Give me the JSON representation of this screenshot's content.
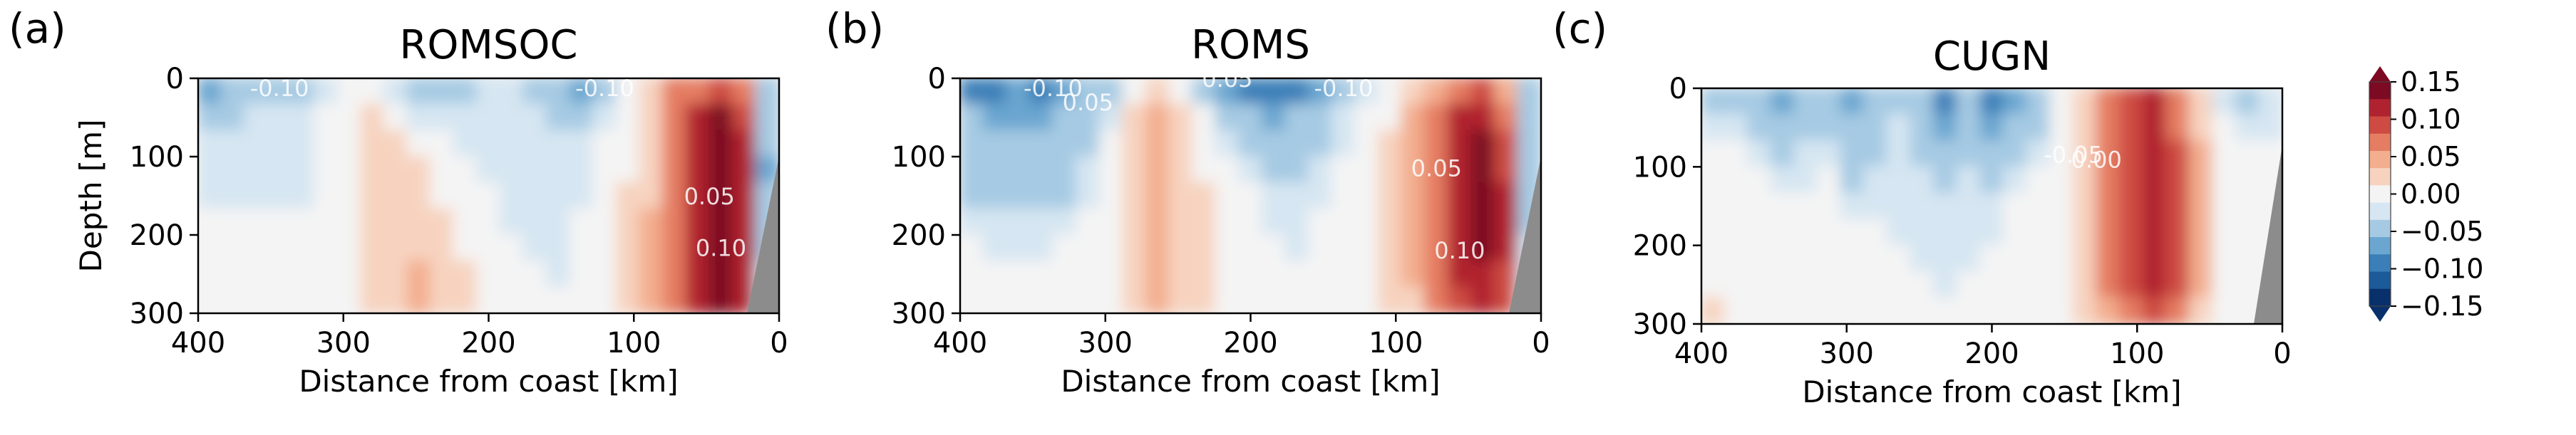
{
  "colors": {
    "cmap": "RdBu_r",
    "land": "#8c8c8c",
    "levels": [
      {
        "lo": -0.15,
        "hi": -0.125,
        "color": "#08306b"
      },
      {
        "lo": -0.125,
        "hi": -0.1,
        "color": "#1c5a99"
      },
      {
        "lo": -0.1,
        "hi": -0.075,
        "color": "#3b7fb8"
      },
      {
        "lo": -0.075,
        "hi": -0.05,
        "color": "#6aa6d0"
      },
      {
        "lo": -0.05,
        "hi": -0.025,
        "color": "#a6cae3"
      },
      {
        "lo": -0.025,
        "hi": -0.01,
        "color": "#d6e6f2"
      },
      {
        "lo": -0.01,
        "hi": 0.01,
        "color": "#f4f4f4"
      },
      {
        "lo": 0.01,
        "hi": 0.025,
        "color": "#f7d3bf"
      },
      {
        "lo": 0.025,
        "hi": 0.05,
        "color": "#f3ae8f"
      },
      {
        "lo": 0.05,
        "hi": 0.075,
        "color": "#e57d62"
      },
      {
        "lo": 0.075,
        "hi": 0.1,
        "color": "#cd4b43"
      },
      {
        "lo": 0.1,
        "hi": 0.125,
        "color": "#b0222f"
      },
      {
        "lo": 0.125,
        "hi": 0.15,
        "color": "#7b0a22"
      }
    ]
  },
  "chart_data": [
    {
      "type": "heatmap",
      "panel_letter": "(a)",
      "title": "ROMSOC",
      "xlabel": "Distance from coast [km]",
      "ylabel": "Depth [m]",
      "xlim": [
        400,
        0
      ],
      "ylim": [
        300,
        0
      ],
      "xticks": [
        "400",
        "300",
        "200",
        "100",
        "0"
      ],
      "yticks": [
        "0",
        "100",
        "200",
        "300"
      ],
      "contour_labels": [
        "-0.10",
        "-0.10",
        "0.05",
        "0.10"
      ],
      "grid": [
        [
          -0.06,
          -0.04,
          -0.03,
          -0.03,
          -0.04,
          -0.02,
          -0.01,
          0.0,
          -0.02,
          -0.04,
          -0.04,
          -0.03,
          -0.02,
          -0.02,
          -0.03,
          -0.05,
          -0.06,
          -0.04,
          -0.01,
          0.02,
          0.05,
          0.07,
          0.08,
          0.06,
          -0.05
        ],
        [
          -0.03,
          -0.03,
          -0.02,
          -0.02,
          -0.02,
          -0.01,
          0.0,
          0.01,
          0.0,
          -0.02,
          -0.02,
          -0.02,
          -0.02,
          -0.02,
          -0.02,
          -0.03,
          -0.03,
          -0.02,
          0.0,
          0.02,
          0.05,
          0.1,
          0.13,
          0.09,
          -0.04
        ],
        [
          -0.02,
          -0.02,
          -0.02,
          -0.02,
          -0.02,
          -0.01,
          0.0,
          0.02,
          0.01,
          0.0,
          -0.01,
          -0.02,
          -0.02,
          -0.02,
          -0.02,
          -0.02,
          -0.02,
          -0.01,
          0.0,
          0.02,
          0.05,
          0.1,
          0.14,
          0.1,
          -0.05
        ],
        [
          -0.02,
          -0.02,
          -0.02,
          -0.02,
          -0.02,
          -0.01,
          0.0,
          0.02,
          0.02,
          0.01,
          0.0,
          -0.01,
          -0.02,
          -0.02,
          -0.02,
          -0.02,
          -0.02,
          -0.01,
          0.0,
          0.02,
          0.05,
          0.1,
          0.14,
          0.11,
          -0.06
        ],
        [
          -0.02,
          -0.02,
          -0.02,
          -0.02,
          -0.02,
          -0.01,
          0.0,
          0.02,
          0.02,
          0.01,
          0.0,
          0.0,
          -0.01,
          -0.02,
          -0.02,
          -0.02,
          -0.02,
          -0.01,
          0.01,
          0.02,
          0.05,
          0.1,
          0.14,
          0.12,
          -0.05
        ],
        [
          0.0,
          0.0,
          0.0,
          0.0,
          -0.01,
          -0.01,
          0.0,
          0.02,
          0.02,
          0.02,
          0.01,
          0.0,
          -0.01,
          -0.02,
          -0.02,
          -0.02,
          -0.01,
          0.0,
          0.01,
          0.03,
          0.05,
          0.1,
          0.14,
          0.12,
          -0.04
        ],
        [
          0.0,
          0.0,
          0.0,
          0.0,
          0.0,
          0.0,
          0.0,
          0.02,
          0.02,
          0.02,
          0.01,
          0.0,
          0.0,
          -0.01,
          -0.02,
          -0.02,
          -0.01,
          0.0,
          0.01,
          0.03,
          0.06,
          0.1,
          0.14,
          0.12,
          -0.03
        ],
        [
          0.0,
          0.0,
          0.0,
          0.0,
          0.0,
          0.0,
          0.0,
          0.02,
          0.02,
          0.03,
          0.02,
          0.01,
          0.0,
          0.0,
          -0.01,
          -0.02,
          -0.01,
          0.0,
          0.01,
          0.03,
          0.06,
          0.1,
          0.13,
          0.11,
          -0.02
        ],
        [
          0.0,
          0.0,
          0.0,
          0.0,
          0.0,
          0.0,
          0.0,
          0.02,
          0.02,
          0.03,
          0.02,
          0.01,
          0.0,
          0.0,
          0.0,
          -0.01,
          0.0,
          0.0,
          0.01,
          0.03,
          0.06,
          0.1,
          0.13,
          0.1,
          -0.02
        ]
      ]
    },
    {
      "type": "heatmap",
      "panel_letter": "(b)",
      "title": "ROMS",
      "xlabel": "Distance from coast [km]",
      "ylabel": "",
      "xlim": [
        400,
        0
      ],
      "ylim": [
        300,
        0
      ],
      "xticks": [
        "400",
        "300",
        "200",
        "100",
        "0"
      ],
      "yticks": [
        "0",
        "100",
        "200",
        "300"
      ],
      "contour_labels": [
        "-0.10",
        "0.05",
        "0.05",
        "-0.10",
        "0.05",
        "0.10"
      ],
      "grid": [
        [
          -0.09,
          -0.08,
          -0.07,
          -0.08,
          -0.07,
          -0.05,
          -0.03,
          0.0,
          0.02,
          0.0,
          -0.03,
          -0.06,
          -0.08,
          -0.09,
          -0.08,
          -0.06,
          -0.04,
          -0.02,
          -0.01,
          0.01,
          0.04,
          0.06,
          0.08,
          0.04,
          -0.04
        ],
        [
          -0.05,
          -0.06,
          -0.06,
          -0.06,
          -0.05,
          -0.04,
          -0.02,
          0.01,
          0.03,
          0.02,
          0.0,
          -0.03,
          -0.05,
          -0.06,
          -0.05,
          -0.03,
          -0.02,
          -0.01,
          0.0,
          0.03,
          0.06,
          0.1,
          0.12,
          0.06,
          -0.03
        ],
        [
          -0.04,
          -0.04,
          -0.04,
          -0.04,
          -0.04,
          -0.03,
          -0.01,
          0.02,
          0.03,
          0.02,
          0.0,
          -0.02,
          -0.03,
          -0.04,
          -0.04,
          -0.03,
          -0.02,
          -0.01,
          0.01,
          0.03,
          0.07,
          0.12,
          0.14,
          0.08,
          -0.04
        ],
        [
          -0.03,
          -0.03,
          -0.03,
          -0.04,
          -0.03,
          -0.02,
          -0.01,
          0.02,
          0.03,
          0.02,
          0.0,
          -0.01,
          -0.02,
          -0.03,
          -0.03,
          -0.02,
          -0.01,
          0.0,
          0.01,
          0.03,
          0.07,
          0.12,
          0.14,
          0.09,
          -0.05
        ],
        [
          -0.03,
          -0.03,
          -0.03,
          -0.03,
          -0.03,
          -0.02,
          0.0,
          0.02,
          0.03,
          0.02,
          0.01,
          0.0,
          -0.01,
          -0.02,
          -0.02,
          -0.02,
          -0.01,
          0.0,
          0.01,
          0.03,
          0.07,
          0.12,
          0.14,
          0.1,
          -0.05
        ],
        [
          -0.02,
          -0.02,
          -0.02,
          -0.02,
          -0.02,
          -0.01,
          0.0,
          0.02,
          0.03,
          0.02,
          0.01,
          0.0,
          -0.01,
          -0.02,
          -0.02,
          -0.01,
          -0.01,
          0.0,
          0.01,
          0.03,
          0.06,
          0.12,
          0.14,
          0.1,
          -0.03
        ],
        [
          -0.01,
          -0.02,
          -0.02,
          -0.02,
          -0.01,
          0.0,
          0.0,
          0.02,
          0.03,
          0.02,
          0.01,
          0.0,
          0.0,
          -0.01,
          -0.02,
          -0.01,
          0.0,
          0.0,
          0.01,
          0.03,
          0.06,
          0.11,
          0.13,
          0.1,
          -0.02
        ],
        [
          -0.01,
          -0.01,
          -0.01,
          -0.01,
          -0.01,
          0.0,
          0.0,
          0.02,
          0.03,
          0.02,
          0.01,
          0.0,
          0.0,
          0.0,
          -0.01,
          -0.01,
          0.0,
          0.0,
          0.01,
          0.03,
          0.06,
          0.1,
          0.12,
          0.09,
          -0.02
        ],
        [
          0.0,
          0.0,
          0.0,
          0.0,
          0.0,
          0.0,
          0.0,
          0.02,
          0.03,
          0.02,
          0.01,
          0.0,
          0.0,
          0.0,
          0.0,
          0.0,
          0.0,
          0.0,
          0.01,
          0.02,
          0.05,
          0.09,
          0.11,
          0.08,
          -0.01
        ]
      ]
    },
    {
      "type": "heatmap",
      "panel_letter": "(c)",
      "title": "CUGN",
      "xlabel": "Distance from coast [km]",
      "ylabel": "",
      "xlim": [
        400,
        0
      ],
      "ylim": [
        300,
        0
      ],
      "xticks": [
        "400",
        "300",
        "200",
        "100",
        "0"
      ],
      "yticks": [
        "0",
        "100",
        "200",
        "300"
      ],
      "contour_labels": [
        "-0.05",
        "0.00"
      ],
      "grid": [
        [
          -0.03,
          -0.03,
          -0.04,
          -0.06,
          -0.03,
          -0.04,
          -0.06,
          -0.04,
          -0.03,
          -0.05,
          -0.08,
          -0.05,
          -0.09,
          -0.07,
          -0.04,
          -0.01,
          0.02,
          0.05,
          0.08,
          0.1,
          0.06,
          0.02,
          -0.02,
          -0.03,
          -0.02
        ],
        [
          -0.02,
          -0.02,
          -0.03,
          -0.04,
          -0.03,
          -0.03,
          -0.05,
          -0.03,
          -0.02,
          -0.04,
          -0.06,
          -0.04,
          -0.07,
          -0.05,
          -0.03,
          -0.01,
          0.02,
          0.05,
          0.09,
          0.11,
          0.07,
          0.02,
          0.0,
          -0.02,
          -0.02
        ],
        [
          -0.01,
          -0.01,
          -0.02,
          -0.03,
          -0.02,
          -0.02,
          -0.04,
          -0.03,
          -0.02,
          -0.03,
          -0.05,
          -0.03,
          -0.05,
          -0.03,
          -0.02,
          0.0,
          0.02,
          0.05,
          0.09,
          0.12,
          0.08,
          0.03,
          0.0,
          -0.01,
          -0.01
        ],
        [
          0.0,
          0.0,
          -0.01,
          -0.02,
          -0.02,
          -0.01,
          -0.03,
          -0.02,
          -0.02,
          -0.02,
          -0.03,
          -0.02,
          -0.03,
          -0.02,
          -0.01,
          0.0,
          0.02,
          0.05,
          0.09,
          0.12,
          0.09,
          0.03,
          0.0,
          0.0,
          0.0
        ],
        [
          0.0,
          0.0,
          0.0,
          -0.01,
          -0.01,
          -0.01,
          -0.02,
          -0.02,
          -0.02,
          -0.02,
          -0.02,
          -0.02,
          -0.02,
          -0.01,
          -0.01,
          0.0,
          0.02,
          0.05,
          0.09,
          0.12,
          0.09,
          0.03,
          0.0,
          0.0,
          0.0
        ],
        [
          0.0,
          0.0,
          0.0,
          0.0,
          0.0,
          -0.01,
          -0.01,
          -0.01,
          -0.02,
          -0.02,
          -0.02,
          -0.02,
          -0.02,
          -0.01,
          0.0,
          0.0,
          0.02,
          0.05,
          0.09,
          0.11,
          0.09,
          0.03,
          0.0,
          0.0,
          0.0
        ],
        [
          0.0,
          0.0,
          0.0,
          0.0,
          0.0,
          0.0,
          0.0,
          -0.01,
          -0.01,
          -0.02,
          -0.02,
          -0.02,
          -0.01,
          0.0,
          0.0,
          0.0,
          0.02,
          0.05,
          0.08,
          0.1,
          0.08,
          0.03,
          0.0,
          0.0,
          0.0
        ],
        [
          0.0,
          0.0,
          0.0,
          0.0,
          0.0,
          0.0,
          0.0,
          0.0,
          -0.01,
          -0.01,
          -0.02,
          -0.01,
          -0.01,
          0.0,
          0.0,
          0.0,
          0.02,
          0.05,
          0.08,
          0.1,
          0.08,
          0.03,
          0.0,
          0.0,
          0.0
        ],
        [
          0.02,
          0.0,
          0.0,
          0.0,
          0.0,
          0.0,
          0.0,
          0.0,
          0.0,
          0.0,
          -0.01,
          0.0,
          0.0,
          0.0,
          0.0,
          0.0,
          0.02,
          0.04,
          0.07,
          0.09,
          0.07,
          0.02,
          0.0,
          0.0,
          0.0
        ]
      ]
    }
  ],
  "colorbar": {
    "ticks": [
      "0.15",
      "0.10",
      "0.05",
      "0.00",
      "−0.05",
      "−0.10",
      "−0.15"
    ]
  }
}
